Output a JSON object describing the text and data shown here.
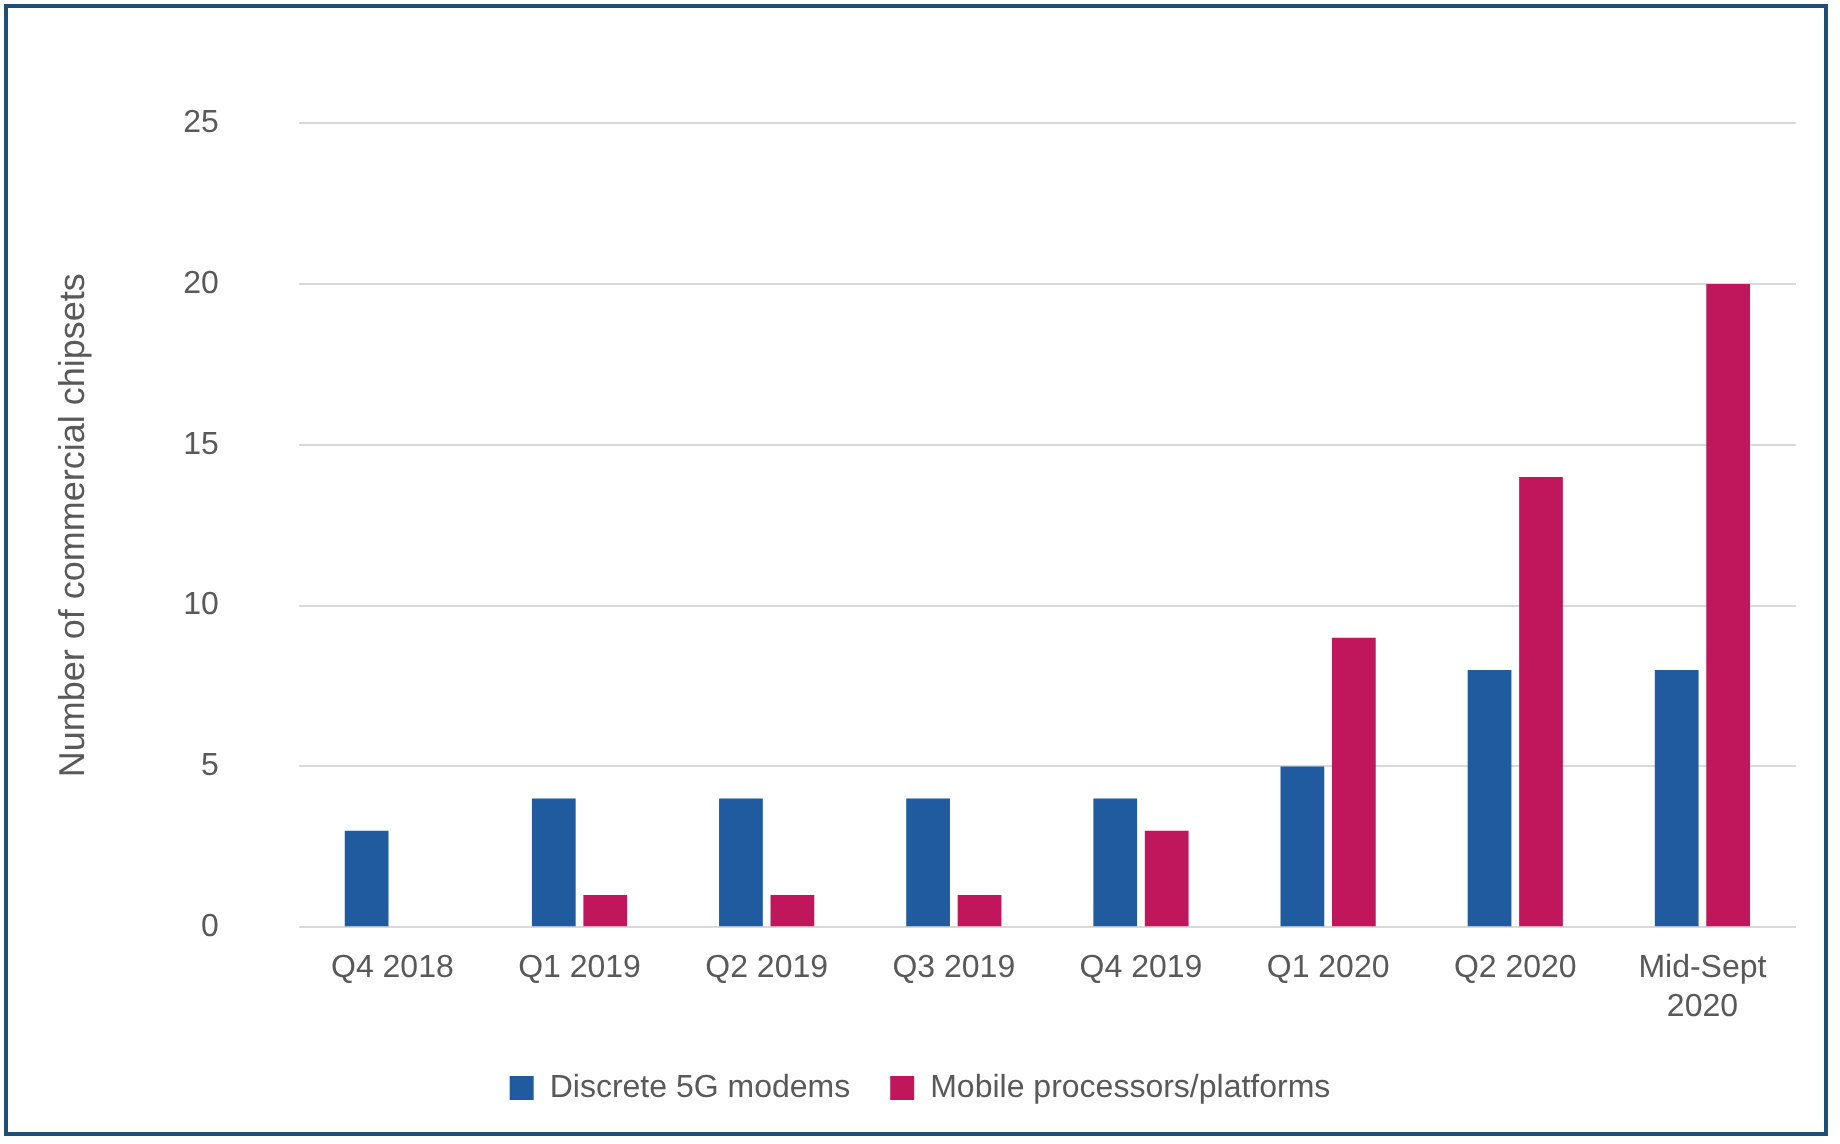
{
  "chart_data": {
    "type": "bar",
    "ylabel": "Number of commercial chipsets",
    "categories": [
      "Q4 2018",
      "Q1 2019",
      "Q2 2019",
      "Q3 2019",
      "Q4 2019",
      "Q1 2020",
      "Q2 2020",
      "Mid-Sept 2020"
    ],
    "series": [
      {
        "name": "Discrete 5G modems",
        "color": "#1f5b9e",
        "values": [
          3,
          4,
          4,
          4,
          4,
          5,
          8,
          8
        ]
      },
      {
        "name": "Mobile processors/platforms",
        "color": "#c0175c",
        "values": [
          0,
          1,
          1,
          1,
          3,
          9,
          14,
          20
        ]
      }
    ],
    "ylim": [
      0,
      25
    ],
    "yticks": [
      0,
      5,
      10,
      15,
      20,
      25
    ],
    "grid": "y",
    "legend": "bottom"
  }
}
